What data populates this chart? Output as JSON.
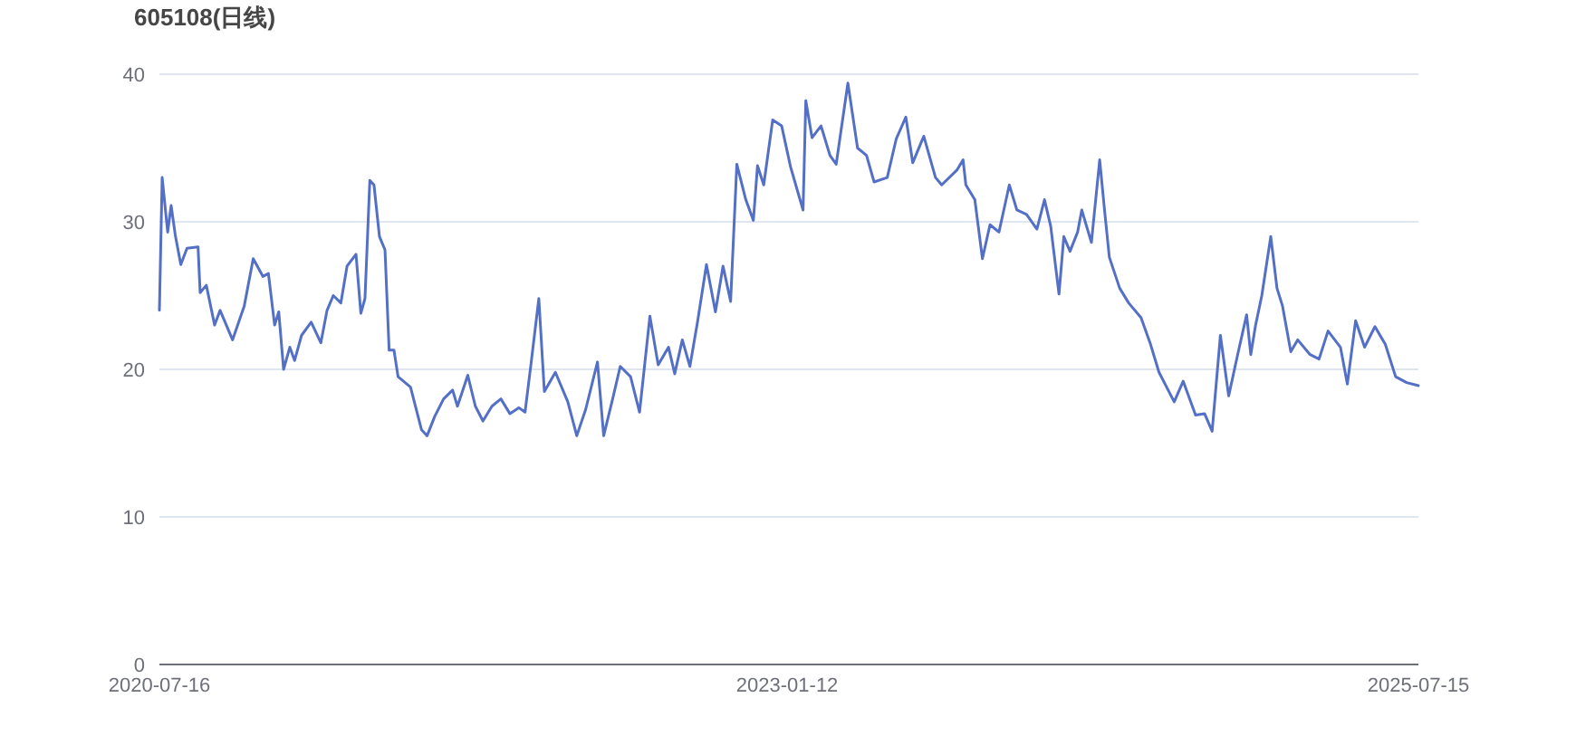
{
  "chart_data": {
    "type": "line",
    "title": "605108(日线)",
    "grid": "y",
    "xlim": [
      "2020-07-16",
      "2025-07-15"
    ],
    "xticks": [
      "2020-07-16",
      "2023-01-12",
      "2025-07-15"
    ],
    "ylim": [
      0,
      40
    ],
    "yticks": [
      0,
      10,
      20,
      30,
      40
    ],
    "series": [
      {
        "color": "#5470c6",
        "x": [
          "2020-07-16",
          "2020-07-20",
          "2020-07-28",
          "2020-08-02",
          "2020-08-08",
          "2020-08-16",
          "2020-08-25",
          "2020-09-10",
          "2020-09-13",
          "2020-09-22",
          "2020-10-04",
          "2020-10-12",
          "2020-10-30",
          "2020-11-16",
          "2020-11-29",
          "2020-12-13",
          "2020-12-21",
          "2020-12-30",
          "2021-01-05",
          "2021-01-12",
          "2021-01-21",
          "2021-01-28",
          "2021-02-07",
          "2021-02-21",
          "2021-03-07",
          "2021-03-16",
          "2021-03-25",
          "2021-04-05",
          "2021-04-14",
          "2021-04-27",
          "2021-05-04",
          "2021-05-10",
          "2021-05-17",
          "2021-05-23",
          "2021-05-31",
          "2021-06-08",
          "2021-06-14",
          "2021-06-21",
          "2021-06-27",
          "2021-07-15",
          "2021-07-31",
          "2021-08-08",
          "2021-08-19",
          "2021-09-01",
          "2021-09-14",
          "2021-09-21",
          "2021-10-06",
          "2021-10-17",
          "2021-10-28",
          "2021-11-10",
          "2021-11-23",
          "2021-12-06",
          "2021-12-19",
          "2021-12-28",
          "2022-01-06",
          "2022-01-17",
          "2022-01-25",
          "2022-02-10",
          "2022-02-28",
          "2022-03-13",
          "2022-03-26",
          "2022-04-12",
          "2022-04-21",
          "2022-05-04",
          "2022-05-15",
          "2022-05-30",
          "2022-06-12",
          "2022-06-27",
          "2022-07-09",
          "2022-07-24",
          "2022-08-02",
          "2022-08-13",
          "2022-08-24",
          "2022-09-04",
          "2022-09-17",
          "2022-09-30",
          "2022-10-11",
          "2022-10-22",
          "2022-10-31",
          "2022-11-13",
          "2022-11-24",
          "2022-11-30",
          "2022-12-09",
          "2022-12-22",
          "2023-01-04",
          "2023-01-17",
          "2023-02-04",
          "2023-02-08",
          "2023-02-17",
          "2023-03-02",
          "2023-03-15",
          "2023-03-24",
          "2023-04-10",
          "2023-04-24",
          "2023-05-07",
          "2023-05-18",
          "2023-06-06",
          "2023-06-19",
          "2023-07-03",
          "2023-07-13",
          "2023-07-29",
          "2023-08-15",
          "2023-08-24",
          "2023-09-15",
          "2023-09-24",
          "2023-09-28",
          "2023-10-11",
          "2023-10-22",
          "2023-11-02",
          "2023-11-15",
          "2023-11-30",
          "2023-12-11",
          "2023-12-25",
          "2024-01-09",
          "2024-01-20",
          "2024-01-29",
          "2024-02-10",
          "2024-02-17",
          "2024-02-26",
          "2024-03-08",
          "2024-03-14",
          "2024-03-28",
          "2024-04-09",
          "2024-04-16",
          "2024-04-23",
          "2024-05-08",
          "2024-05-21",
          "2024-06-08",
          "2024-06-21",
          "2024-07-04",
          "2024-07-26",
          "2024-08-08",
          "2024-08-26",
          "2024-09-08",
          "2024-09-19",
          "2024-10-01",
          "2024-10-13",
          "2024-10-26",
          "2024-11-08",
          "2024-11-14",
          "2024-11-21",
          "2024-11-30",
          "2024-12-13",
          "2024-12-22",
          "2024-12-30",
          "2025-01-11",
          "2025-01-21",
          "2025-02-08",
          "2025-02-21",
          "2025-03-06",
          "2025-03-24",
          "2025-04-03",
          "2025-04-15",
          "2025-04-28",
          "2025-05-13",
          "2025-05-28",
          "2025-06-12",
          "2025-06-28",
          "2025-07-15"
        ],
        "values": [
          24.0,
          33.0,
          29.3,
          31.1,
          29.1,
          27.1,
          28.2,
          28.3,
          25.2,
          25.7,
          23.0,
          24.0,
          22.0,
          24.3,
          27.5,
          26.3,
          26.5,
          23.0,
          23.9,
          20.0,
          21.5,
          20.6,
          22.3,
          23.2,
          21.8,
          24.0,
          25.0,
          24.5,
          27.0,
          27.8,
          23.8,
          24.8,
          32.8,
          32.5,
          29.0,
          28.1,
          21.3,
          21.3,
          19.5,
          18.8,
          15.9,
          15.5,
          16.8,
          18.0,
          18.6,
          17.5,
          19.6,
          17.5,
          16.5,
          17.5,
          18.0,
          17.0,
          17.4,
          17.1,
          20.5,
          24.8,
          18.5,
          19.8,
          17.8,
          15.5,
          17.3,
          20.5,
          15.5,
          18.0,
          20.2,
          19.5,
          17.1,
          23.6,
          20.3,
          21.5,
          19.7,
          22.0,
          20.2,
          23.2,
          27.1,
          23.9,
          27.0,
          24.6,
          33.9,
          31.5,
          30.1,
          33.8,
          32.5,
          36.9,
          36.5,
          33.7,
          30.8,
          38.2,
          35.7,
          36.5,
          34.5,
          33.9,
          39.4,
          35.0,
          34.5,
          32.7,
          33.0,
          35.6,
          37.1,
          34.0,
          35.8,
          33.0,
          32.5,
          33.5,
          34.2,
          32.5,
          31.5,
          27.5,
          29.8,
          29.3,
          32.5,
          30.8,
          30.5,
          29.5,
          31.5,
          29.7,
          25.1,
          29.0,
          28.0,
          29.3,
          30.8,
          28.6,
          34.2,
          30.8,
          27.6,
          25.5,
          24.5,
          23.5,
          21.8,
          19.8,
          17.8,
          19.2,
          16.9,
          17.0,
          15.8,
          22.3,
          18.2,
          21.0,
          23.7,
          21.0,
          23.0,
          25.0,
          29.0,
          25.5,
          24.3,
          21.2,
          22.0,
          21.0,
          20.7,
          22.6,
          21.5,
          19.0,
          23.3,
          21.5,
          22.9,
          21.7,
          19.5,
          19.1,
          18.9
        ]
      }
    ]
  }
}
